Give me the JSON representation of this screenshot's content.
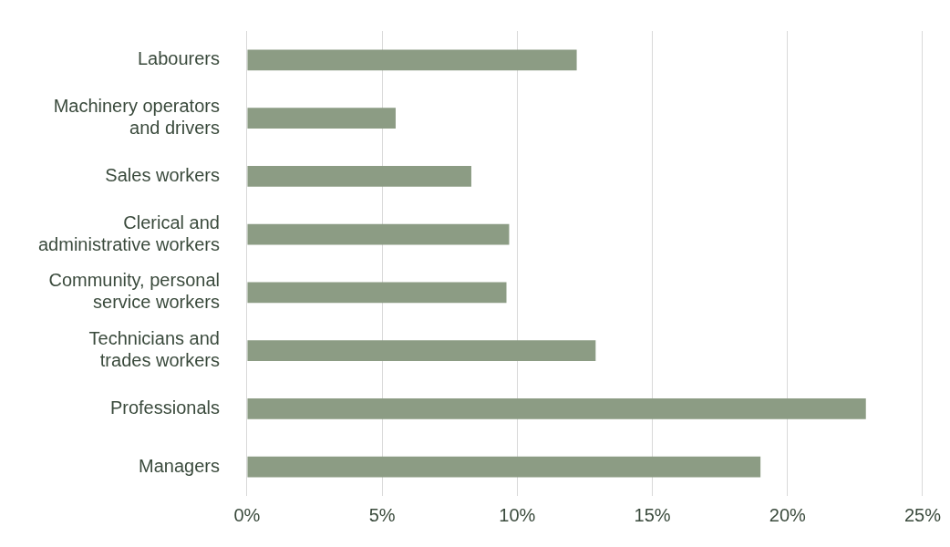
{
  "chart_data": {
    "type": "bar",
    "orientation": "horizontal",
    "categories": [
      [
        "Labourers"
      ],
      [
        "Machinery operators",
        "and drivers"
      ],
      [
        "Sales workers"
      ],
      [
        "Clerical and",
        "administrative workers"
      ],
      [
        "Community, personal",
        "service workers"
      ],
      [
        "Technicians and",
        "trades workers"
      ],
      [
        "Professionals"
      ],
      [
        "Managers"
      ]
    ],
    "values": [
      12.2,
      5.5,
      8.3,
      9.7,
      9.6,
      12.9,
      22.9,
      19.0
    ],
    "color": "#8c9c84",
    "xlim": [
      0,
      25
    ],
    "xticks": [
      {
        "value": 0,
        "label": "0%"
      },
      {
        "value": 5,
        "label": "5%"
      },
      {
        "value": 10,
        "label": "10%"
      },
      {
        "value": 15,
        "label": "15%"
      },
      {
        "value": 20,
        "label": "20%"
      },
      {
        "value": 25,
        "label": "25%"
      }
    ],
    "grid": true
  }
}
